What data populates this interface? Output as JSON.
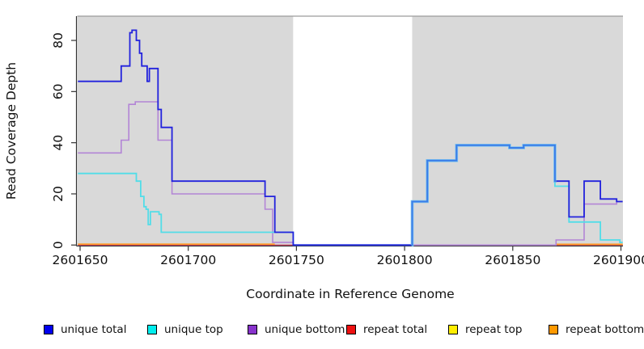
{
  "chart_data": {
    "type": "line",
    "title": "",
    "xlabel": "Coordinate in Reference Genome",
    "ylabel": "Read Coverage Depth",
    "x_axis": {
      "ticks": [
        2601650,
        2601700,
        2601750,
        2601800,
        2601850,
        2601900
      ],
      "range": [
        2601649,
        2601900.8
      ]
    },
    "y_axis": {
      "ticks": [
        0,
        20,
        40,
        60,
        80
      ],
      "range": [
        0,
        89
      ]
    },
    "background": {
      "panel_color": "#d9d9d9",
      "top_border_color": "#9c9c9c",
      "uncovered_gap": {
        "from": 2601748.5,
        "to": 2601803.5,
        "color": "#ffffff"
      }
    },
    "series": [
      {
        "name": "unique-total",
        "legend_label": "unique total",
        "color": "#2222dd",
        "steps": [
          [
            2601649,
            64
          ],
          [
            2601669,
            70
          ],
          [
            2601673,
            83
          ],
          [
            2601674,
            84
          ],
          [
            2601676,
            80
          ],
          [
            2601677.5,
            75
          ],
          [
            2601678.5,
            70
          ],
          [
            2601681,
            64
          ],
          [
            2601682,
            69
          ],
          [
            2601686,
            53
          ],
          [
            2601687.5,
            46
          ],
          [
            2601692.5,
            25
          ],
          [
            2601735.5,
            19
          ],
          [
            2601740,
            5
          ],
          [
            2601748.5,
            0
          ],
          [
            2601803.5,
            17
          ],
          [
            2601810.5,
            33
          ],
          [
            2601824,
            39
          ],
          [
            2601848.5,
            38
          ],
          [
            2601855,
            39
          ],
          [
            2601869.5,
            25
          ],
          [
            2601876,
            11
          ],
          [
            2601883,
            25
          ],
          [
            2601890.5,
            18
          ],
          [
            2601898,
            17
          ]
        ],
        "parts": [
          {
            "from": 2601649,
            "to": 2601803.5,
            "color": "#2222dd",
            "width": 1.8
          },
          {
            "from": 2601803.2,
            "to": 2601870.2,
            "color": "#7cc4f0",
            "width": 3.6
          },
          {
            "from": 2601803.2,
            "to": 2601870.2,
            "color": "#3b7de8",
            "width": 2.0
          },
          {
            "from": 2601870.2,
            "to": 2601900.8,
            "color": "#2222dd",
            "width": 1.8
          }
        ]
      },
      {
        "name": "unique-top",
        "legend_label": "unique top",
        "color": "#52dde8",
        "steps": [
          [
            2601649,
            28
          ],
          [
            2601676,
            25
          ],
          [
            2601678,
            19
          ],
          [
            2601679.5,
            15
          ],
          [
            2601680.5,
            14
          ],
          [
            2601681.5,
            8
          ],
          [
            2601682.5,
            13
          ],
          [
            2601686.5,
            12
          ],
          [
            2601687.5,
            5
          ],
          [
            2601748.5,
            0
          ],
          [
            2601803.5,
            17
          ],
          [
            2601810.5,
            33
          ],
          [
            2601824,
            39
          ],
          [
            2601848.5,
            38
          ],
          [
            2601855,
            39
          ],
          [
            2601869.5,
            23
          ],
          [
            2601876,
            9
          ],
          [
            2601890.5,
            2
          ],
          [
            2601899.5,
            1
          ]
        ],
        "parts": [
          {
            "from": 2601649,
            "to": 2601900.8,
            "color": "#52dde8",
            "width": 1.8
          }
        ]
      },
      {
        "name": "unique-bottom",
        "legend_label": "unique bottom",
        "color": "#b385d6",
        "steps": [
          [
            2601649,
            36
          ],
          [
            2601669,
            41
          ],
          [
            2601672.5,
            55
          ],
          [
            2601675.5,
            56
          ],
          [
            2601686,
            41
          ],
          [
            2601692.5,
            20
          ],
          [
            2601735.5,
            14
          ],
          [
            2601739,
            1
          ],
          [
            2601748.5,
            0
          ],
          [
            2601870,
            2
          ],
          [
            2601883,
            16
          ],
          [
            2601898,
            17
          ]
        ],
        "parts": [
          {
            "from": 2601649,
            "to": 2601900.8,
            "color": "#b385d6",
            "width": 1.6
          }
        ]
      },
      {
        "name": "repeat-total",
        "legend_label": "repeat total",
        "color": "#cc3355",
        "steps": [
          [
            2601649,
            0
          ]
        ],
        "parts": []
      },
      {
        "name": "repeat-top",
        "legend_label": "repeat top",
        "color": "#ffee00",
        "steps": [
          [
            2601649,
            0
          ]
        ],
        "parts": []
      },
      {
        "name": "repeat-bottom",
        "legend_label": "repeat bottom",
        "color": "#ff9920",
        "steps": [
          [
            2601649,
            0
          ]
        ],
        "parts": []
      }
    ],
    "zero_line_segments": [
      {
        "from": 2601649,
        "to": 2601900.8,
        "value": 0,
        "color": "#cc3355",
        "width": 1.2
      },
      {
        "from": 2601649,
        "to": 2601740,
        "value": 0.35,
        "color": "#ff9920",
        "width": 1.7
      },
      {
        "from": 2601870,
        "to": 2601900.8,
        "value": 0.3,
        "color": "#ff9920",
        "width": 1.7
      }
    ],
    "legend": [
      {
        "label": "unique total",
        "color": "#0000ee"
      },
      {
        "label": "unique top",
        "color": "#00eeee"
      },
      {
        "label": "unique bottom",
        "color": "#8833cc"
      },
      {
        "label": "repeat total",
        "color": "#ee1111"
      },
      {
        "label": "repeat top",
        "color": "#ffee00"
      },
      {
        "label": "repeat bottom",
        "color": "#ff9900"
      }
    ]
  }
}
